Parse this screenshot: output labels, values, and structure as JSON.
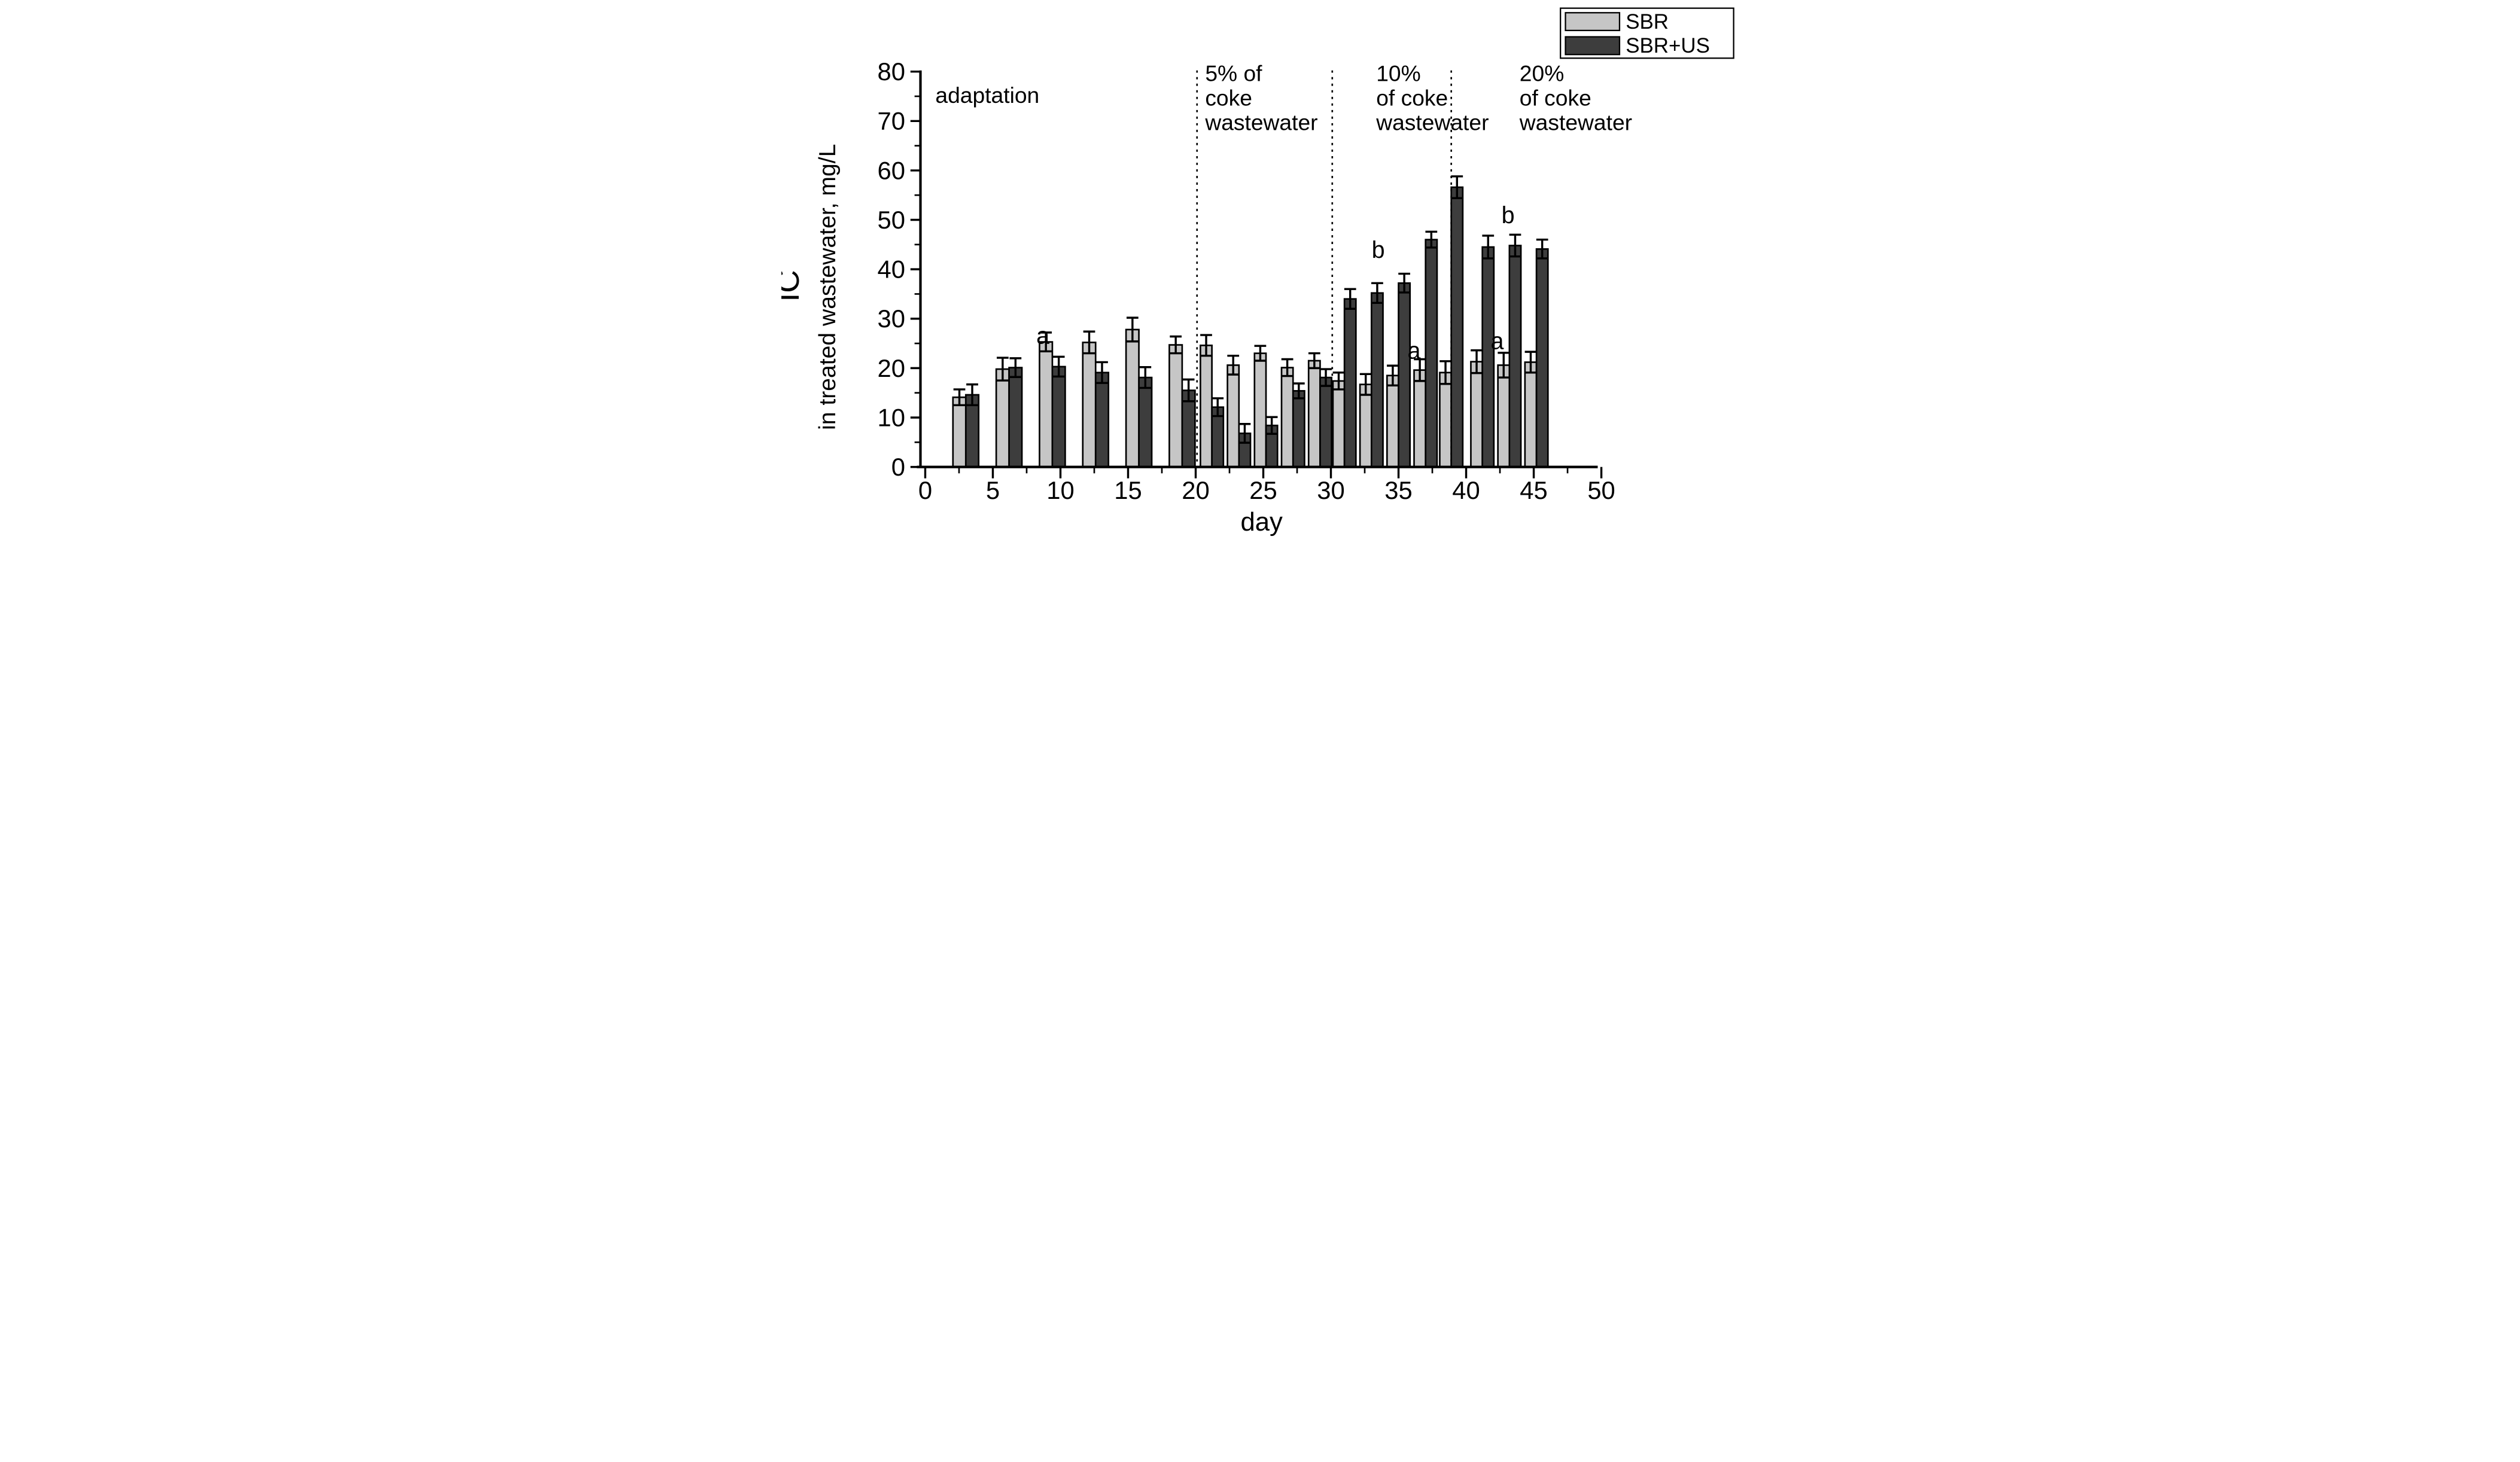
{
  "chart_data": {
    "type": "bar",
    "title": "",
    "xlabel": "day",
    "ylabel_line1": "IC",
    "ylabel_line2": "in treated wastewater, mg/L",
    "xlim": [
      0,
      50
    ],
    "ylim": [
      0,
      80
    ],
    "x_ticks": [
      "0",
      "5",
      "10",
      "15",
      "20",
      "25",
      "30",
      "35",
      "40",
      "45",
      "50"
    ],
    "x_tick_values": [
      0,
      5,
      10,
      15,
      20,
      25,
      30,
      35,
      40,
      45,
      50
    ],
    "x_minor_step": 2.5,
    "y_ticks": [
      "0",
      "10",
      "20",
      "30",
      "40",
      "50",
      "60",
      "70",
      "80"
    ],
    "y_tick_values": [
      0,
      10,
      20,
      30,
      40,
      50,
      60,
      70,
      80
    ],
    "y_minor_step": 5,
    "grid": false,
    "legend_position": "top-right",
    "colors": {
      "sbr": "#c6c6c6",
      "sbr_us": "#3d3d3d",
      "axis": "#000000",
      "background": "#ffffff"
    },
    "legend": [
      {
        "key": "sbr",
        "label": "SBR"
      },
      {
        "key": "sbr_us",
        "label": "SBR+US"
      }
    ],
    "categories_days": [
      3.0,
      6.2,
      9.4,
      12.6,
      15.8,
      19.0,
      21.2,
      23.2,
      25.2,
      27.2,
      29.2,
      31.0,
      33.0,
      35.0,
      37.0,
      38.9,
      41.2,
      43.2,
      45.2
    ],
    "bar_half_width_days": [
      0.95,
      0.95,
      0.95,
      0.95,
      0.95,
      0.95,
      0.85,
      0.85,
      0.85,
      0.85,
      0.85,
      0.85,
      0.85,
      0.85,
      0.85,
      0.85,
      0.85,
      0.85,
      0.85
    ],
    "series": [
      {
        "name": "SBR",
        "values": [
          14.1,
          19.8,
          25.3,
          25.2,
          27.8,
          24.7,
          24.6,
          20.6,
          23.0,
          20.1,
          21.5,
          17.4,
          16.7,
          18.5,
          19.6,
          19.1,
          21.3,
          20.6,
          21.2
        ],
        "errors": [
          1.6,
          2.3,
          1.9,
          2.2,
          2.4,
          1.7,
          2.1,
          1.9,
          1.5,
          1.7,
          1.5,
          1.7,
          2.1,
          2.0,
          2.2,
          2.3,
          2.3,
          2.5,
          2.1
        ]
      },
      {
        "name": "SBR+US",
        "values": [
          14.6,
          20.1,
          20.3,
          19.1,
          18.1,
          15.5,
          12.1,
          6.8,
          8.4,
          15.4,
          18.1,
          34.0,
          35.2,
          37.2,
          46.0,
          56.6,
          44.5,
          44.8,
          44.1
        ],
        "errors": [
          2.1,
          1.9,
          2.0,
          2.1,
          2.1,
          2.2,
          1.8,
          1.9,
          1.7,
          1.5,
          1.7,
          2.0,
          2.0,
          1.9,
          1.6,
          2.2,
          2.3,
          2.2,
          1.9
        ]
      }
    ],
    "phase_lines_days": [
      20.1,
      30.1,
      38.9
    ],
    "regions": [
      {
        "lines": [
          "adaptation"
        ],
        "day": 0.75,
        "val": 75.3
      },
      {
        "lines": [
          "5% of",
          "coke",
          "wastewater"
        ],
        "day": 20.7,
        "val": 79.7
      },
      {
        "lines": [
          "10%",
          "of coke",
          "wastewater"
        ],
        "day": 33.35,
        "val": 79.7
      },
      {
        "lines": [
          "20%",
          "of coke",
          "wastewater"
        ],
        "day": 43.95,
        "val": 79.7
      }
    ],
    "significance_letters": [
      {
        "text": "a",
        "day": 8.7,
        "val": 26.6
      },
      {
        "text": "b",
        "day": 33.5,
        "val": 44.0
      },
      {
        "text": "a",
        "day": 36.15,
        "val": 23.6
      },
      {
        "text": "a",
        "day": 42.3,
        "val": 25.5
      },
      {
        "text": "b",
        "day": 43.1,
        "val": 51.0
      }
    ]
  }
}
